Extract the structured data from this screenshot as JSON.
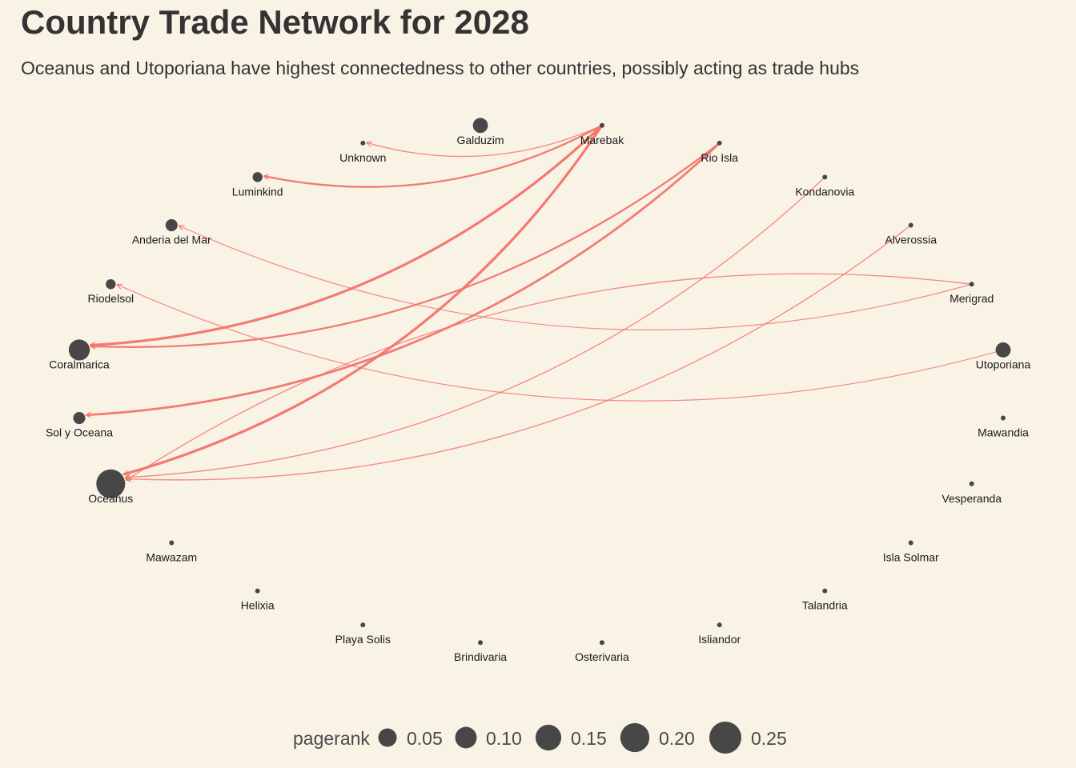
{
  "title": "Country Trade Network for 2028",
  "subtitle": "Oceanus and Utoporiana have highest connectedness to other countries, possibly acting as trade hubs",
  "colors": {
    "edge": "#f2736c",
    "node": "#474747",
    "background": "#f9f3e6"
  },
  "chart_data": {
    "type": "network",
    "layout": "circle",
    "nodes": [
      {
        "name": "Galduzim",
        "pagerank": 0.07
      },
      {
        "name": "Marebak",
        "pagerank": 0.03
      },
      {
        "name": "Rio Isla",
        "pagerank": 0.03
      },
      {
        "name": "Kondanovia",
        "pagerank": 0.03
      },
      {
        "name": "Alverossia",
        "pagerank": 0.03
      },
      {
        "name": "Merigrad",
        "pagerank": 0.03
      },
      {
        "name": "Utoporiana",
        "pagerank": 0.07
      },
      {
        "name": "Mawandia",
        "pagerank": 0.03
      },
      {
        "name": "Vesperanda",
        "pagerank": 0.03
      },
      {
        "name": "Isla Solmar",
        "pagerank": 0.03
      },
      {
        "name": "Talandria",
        "pagerank": 0.03
      },
      {
        "name": "Isliandor",
        "pagerank": 0.03
      },
      {
        "name": "Osterivaria",
        "pagerank": 0.03
      },
      {
        "name": "Brindivaria",
        "pagerank": 0.03
      },
      {
        "name": "Playa Solis",
        "pagerank": 0.03
      },
      {
        "name": "Helixia",
        "pagerank": 0.03
      },
      {
        "name": "Mawazam",
        "pagerank": 0.03
      },
      {
        "name": "Oceanus",
        "pagerank": 0.25
      },
      {
        "name": "Sol y Oceana",
        "pagerank": 0.05
      },
      {
        "name": "Coralmarica",
        "pagerank": 0.13
      },
      {
        "name": "Riodelsol",
        "pagerank": 0.04
      },
      {
        "name": "Anderia del Mar",
        "pagerank": 0.05
      },
      {
        "name": "Luminkind",
        "pagerank": 0.04
      },
      {
        "name": "Unknown",
        "pagerank": 0.03
      }
    ],
    "edges": [
      {
        "source": "Marebak",
        "target": "Unknown",
        "weight": 1
      },
      {
        "source": "Marebak",
        "target": "Luminkind",
        "weight": 2
      },
      {
        "source": "Marebak",
        "target": "Coralmarica",
        "weight": 3
      },
      {
        "source": "Marebak",
        "target": "Oceanus",
        "weight": 3
      },
      {
        "source": "Rio Isla",
        "target": "Coralmarica",
        "weight": 2
      },
      {
        "source": "Rio Isla",
        "target": "Sol y Oceana",
        "weight": 2.5
      },
      {
        "source": "Kondanovia",
        "target": "Oceanus",
        "weight": 1
      },
      {
        "source": "Alverossia",
        "target": "Oceanus",
        "weight": 1
      },
      {
        "source": "Merigrad",
        "target": "Oceanus",
        "weight": 1
      },
      {
        "source": "Merigrad",
        "target": "Anderia del Mar",
        "weight": 0.8
      },
      {
        "source": "Utoporiana",
        "target": "Riodelsol",
        "weight": 0.8
      }
    ],
    "legend": {
      "title": "pagerank",
      "placement": "bottom",
      "values": [
        0.05,
        0.1,
        0.15,
        0.2,
        0.25
      ],
      "labels": [
        "0.05",
        "0.10",
        "0.15",
        "0.20",
        "0.25"
      ]
    }
  }
}
